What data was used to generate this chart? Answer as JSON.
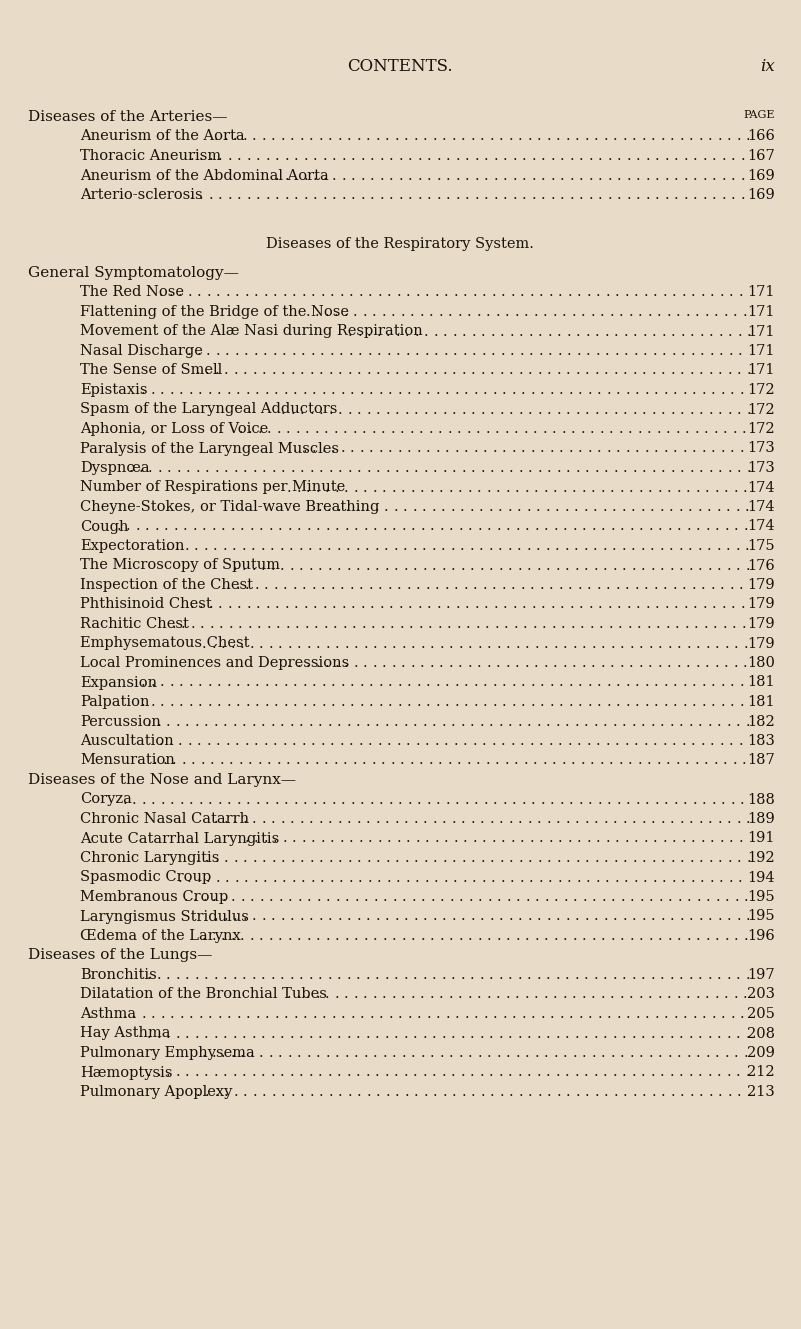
{
  "bg_color": "#e8dcc8",
  "text_color": "#1a1208",
  "page_title": "CONTENTS.",
  "page_num": "ix",
  "sections": [
    {
      "type": "section_header",
      "text": "Diseases of the Arteries—",
      "page_label": "PAGE",
      "indent": 0
    },
    {
      "type": "entry",
      "text": "Aneurism of the Aorta",
      "page": "166",
      "indent": 1
    },
    {
      "type": "entry",
      "text": "Thoracic Aneurism",
      "page": "167",
      "indent": 1
    },
    {
      "type": "entry",
      "text": "Aneurism of the Abdominal Aorta",
      "page": "169",
      "indent": 1
    },
    {
      "type": "entry",
      "text": "Arterio-sclerosis",
      "page": "169",
      "indent": 1
    },
    {
      "type": "blank",
      "size": 1.5
    },
    {
      "type": "section_title",
      "text": "Diseases of the Respiratory System."
    },
    {
      "type": "blank",
      "size": 0.5
    },
    {
      "type": "section_header",
      "text": "General Symptomatology—",
      "indent": 0
    },
    {
      "type": "entry",
      "text": "The Red Nose",
      "page": "171",
      "indent": 1
    },
    {
      "type": "entry",
      "text": "Flattening of the Bridge of the Nose",
      "page": "171",
      "indent": 1
    },
    {
      "type": "entry",
      "text": "Movement of the Alæ Nasi during Respiration",
      "page": "171",
      "indent": 1
    },
    {
      "type": "entry",
      "text": "Nasal Discharge",
      "page": "171",
      "indent": 1
    },
    {
      "type": "entry",
      "text": "The Sense of Smell",
      "page": "171",
      "indent": 1
    },
    {
      "type": "entry",
      "text": "Epistaxis",
      "page": "172",
      "indent": 1
    },
    {
      "type": "entry",
      "text": "Spasm of the Laryngeal Adductors",
      "page": "172",
      "indent": 1
    },
    {
      "type": "entry",
      "text": "Aphonia, or Loss of Voice",
      "page": "172",
      "indent": 1
    },
    {
      "type": "entry",
      "text": "Paralysis of the Laryngeal Muscles",
      "page": "173",
      "indent": 1
    },
    {
      "type": "entry",
      "text": "Dyspnœa",
      "page": "173",
      "indent": 1
    },
    {
      "type": "entry",
      "text": "Number of Respirations per Minute",
      "page": "174",
      "indent": 1
    },
    {
      "type": "entry",
      "text": "Cheyne-Stokes, or Tidal-wave Breathing",
      "page": "174",
      "indent": 1
    },
    {
      "type": "entry",
      "text": "Cough",
      "page": "174",
      "indent": 1
    },
    {
      "type": "entry",
      "text": "Expectoration",
      "page": "175",
      "indent": 1
    },
    {
      "type": "entry",
      "text": "The Microscopy of Sputum",
      "page": "176",
      "indent": 1
    },
    {
      "type": "entry",
      "text": "Inspection of the Chest",
      "page": "179",
      "indent": 1
    },
    {
      "type": "entry",
      "text": "Phthisinoid Chest",
      "page": "179",
      "indent": 1
    },
    {
      "type": "entry",
      "text": "Rachitic Chest",
      "page": "179",
      "indent": 1
    },
    {
      "type": "entry",
      "text": "Emphysematous Chest",
      "page": "179",
      "indent": 1
    },
    {
      "type": "entry",
      "text": "Local Prominences and Depressions",
      "page": "180",
      "indent": 1
    },
    {
      "type": "entry",
      "text": "Expansion",
      "page": "181",
      "indent": 1
    },
    {
      "type": "entry",
      "text": "Palpation",
      "page": "181",
      "indent": 1
    },
    {
      "type": "entry",
      "text": "Percussion",
      "page": "182",
      "indent": 1
    },
    {
      "type": "entry",
      "text": "Auscultation",
      "page": "183",
      "indent": 1
    },
    {
      "type": "entry",
      "text": "Mensuration",
      "page": "187",
      "indent": 1
    },
    {
      "type": "section_header",
      "text": "Diseases of the Nose and Larynx—",
      "indent": 0
    },
    {
      "type": "entry",
      "text": "Coryza",
      "page": "188",
      "indent": 1
    },
    {
      "type": "entry",
      "text": "Chronic Nasal Catarrh",
      "page": "189",
      "indent": 1
    },
    {
      "type": "entry",
      "text": "Acute Catarrhal Laryngitis",
      "page": "191",
      "indent": 1
    },
    {
      "type": "entry",
      "text": "Chronic Laryngitis",
      "page": "192",
      "indent": 1
    },
    {
      "type": "entry",
      "text": "Spasmodic Croup",
      "page": "194",
      "indent": 1
    },
    {
      "type": "entry",
      "text": "Membranous Croup",
      "page": "195",
      "indent": 1
    },
    {
      "type": "entry",
      "text": "Laryngismus Stridulus",
      "page": "195",
      "indent": 1
    },
    {
      "type": "entry",
      "text": "Œdema of the Larynx",
      "page": "196",
      "indent": 1
    },
    {
      "type": "section_header",
      "text": "Diseases of the Lungs—",
      "indent": 0
    },
    {
      "type": "entry",
      "text": "Bronchitis",
      "page": "197",
      "indent": 1
    },
    {
      "type": "entry",
      "text": "Dilatation of the Bronchial Tubes",
      "page": "203",
      "indent": 1
    },
    {
      "type": "entry",
      "text": "Asthma",
      "page": "205",
      "indent": 1
    },
    {
      "type": "entry",
      "text": "Hay Asthma",
      "page": "208",
      "indent": 1
    },
    {
      "type": "entry",
      "text": "Pulmonary Emphysema",
      "page": "209",
      "indent": 1
    },
    {
      "type": "entry",
      "text": "Hæmoptysis",
      "page": "212",
      "indent": 1
    },
    {
      "type": "entry",
      "text": "Pulmonary Apoplexy",
      "page": "213",
      "indent": 1
    }
  ]
}
